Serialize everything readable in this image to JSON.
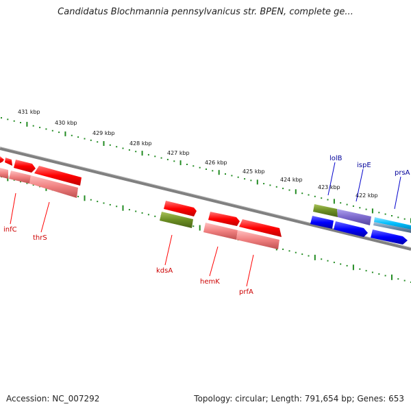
{
  "title": "Candidatus Blochmannia pennsylvanicus str. BPEN, complete ge...",
  "footer": {
    "accession": "Accession: NC_007292",
    "stats": "Topology: circular; Length: 791,654 bp; Genes: 653"
  },
  "ticks": [
    "431 kbp",
    "430 kbp",
    "429 kbp",
    "428 kbp",
    "427 kbp",
    "426 kbp",
    "425 kbp",
    "424 kbp",
    "423 kbp",
    "422 kbp"
  ],
  "genes": [
    {
      "name": "infC",
      "color": "#cc0000"
    },
    {
      "name": "thrS",
      "color": "#cc0000"
    },
    {
      "name": "kdsA",
      "color": "#cc0000"
    },
    {
      "name": "hemK",
      "color": "#cc0000"
    },
    {
      "name": "prfA",
      "color": "#cc0000"
    },
    {
      "name": "lolB",
      "color": "#000099"
    },
    {
      "name": "ispE",
      "color": "#000099"
    },
    {
      "name": "prsA",
      "color": "#000099"
    }
  ],
  "colors": {
    "backbone": "#808080",
    "tick": "#228b22",
    "gene_red": "#ff0000",
    "gene_pink": "#f08080",
    "gene_olive": "#6b8e23",
    "gene_blue": "#0000ff",
    "gene_purple": "#7b68cc",
    "gene_cyan": "#00bfff"
  }
}
